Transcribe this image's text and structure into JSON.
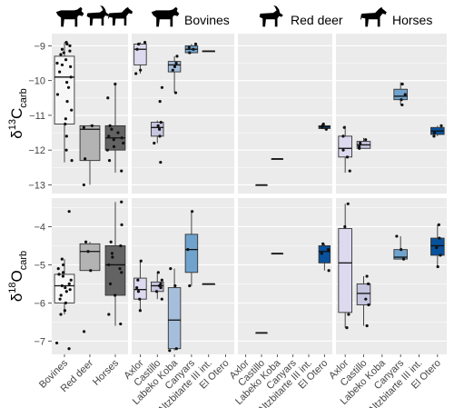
{
  "chart_data": {
    "type": "boxplot",
    "colors": {
      "panel_bg": "#ebebeb",
      "grid": "#ffffff",
      "axis_text": "#444444",
      "point": "#111111",
      "median": "#111111",
      "box_stroke": "#333333",
      "Bovines": "#f7f7f7",
      "Red deer": "#b3b3b3",
      "Horses": "#636363",
      "Axlor": "#ddd9ef",
      "Castillo": "#c6c6e0",
      "Labeko Koba": "#a4bedb",
      "Canyars": "#6fa3cd",
      "Altzbitarte III int.": "#3b78ae",
      "El Otero": "#08519c"
    },
    "column_headers": [
      {
        "label": "",
        "icons": [
          "cow-icon",
          "ibex-icon",
          "horse-icon"
        ]
      },
      {
        "label": "Bovines",
        "icon": "cow-icon"
      },
      {
        "label": "Red deer",
        "icon": "ibex-icon"
      },
      {
        "label": "Horses",
        "icon": "horse-icon"
      }
    ],
    "rows": [
      {
        "id": "C",
        "ylabel": "δ13Ccarb",
        "ylabel_main": "δ",
        "ylabel_sup": "13",
        "ylabel_base": "C",
        "ylabel_sub": "carb",
        "ylim": [
          -13.25,
          -8.65
        ],
        "yticks": [
          -9,
          -10,
          -11,
          -12,
          -13
        ]
      },
      {
        "id": "O",
        "ylabel": "δ18Ocarb",
        "ylabel_main": "δ",
        "ylabel_sup": "18",
        "ylabel_base": "O",
        "ylabel_sub": "carb",
        "ylim": [
          -7.35,
          -3.25
        ],
        "yticks": [
          -4,
          -5,
          -6,
          -7
        ]
      }
    ],
    "overview": {
      "categories": [
        "Bovines",
        "Red deer",
        "Horses"
      ],
      "C": [
        {
          "cat": "Bovines",
          "q1": -11.25,
          "median": -9.9,
          "q3": -9.3,
          "lo": -12.35,
          "hi": -8.9,
          "points": [
            -8.9,
            -8.95,
            -9.0,
            -9.1,
            -9.15,
            -9.2,
            -9.25,
            -9.4,
            -9.5,
            -9.55,
            -9.6,
            -9.75,
            -9.9,
            -10.05,
            -10.2,
            -10.4,
            -10.6,
            -10.85,
            -11.1,
            -11.25,
            -11.6,
            -12.0,
            -12.3
          ]
        },
        {
          "cat": "Red deer",
          "q1": -12.3,
          "median": -11.4,
          "q3": -11.3,
          "lo": -13.0,
          "hi": -11.28,
          "points": [
            -11.3,
            -11.35,
            -12.25,
            -13.0
          ]
        },
        {
          "cat": "Horses",
          "q1": -12.0,
          "median": -11.65,
          "q3": -11.3,
          "lo": -12.65,
          "hi": -10.1,
          "points": [
            -10.1,
            -10.5,
            -11.3,
            -11.4,
            -11.5,
            -11.6,
            -11.65,
            -11.7,
            -11.8,
            -11.9,
            -12.0,
            -12.3,
            -12.6
          ]
        }
      ],
      "O": [
        {
          "cat": "Bovines",
          "q1": -6.0,
          "median": -5.55,
          "q3": -5.25,
          "lo": -6.3,
          "hi": -4.85,
          "points": [
            -3.6,
            -4.85,
            -5.0,
            -5.1,
            -5.2,
            -5.25,
            -5.3,
            -5.4,
            -5.5,
            -5.55,
            -5.6,
            -5.65,
            -5.7,
            -5.8,
            -5.9,
            -6.0,
            -6.2,
            -6.3,
            -7.05,
            -7.2
          ]
        },
        {
          "cat": "Red deer",
          "q1": -5.15,
          "median": -4.65,
          "q3": -4.45,
          "lo": -5.15,
          "hi": -4.4,
          "points": [
            -4.4,
            -4.65,
            -5.15,
            -6.75
          ]
        },
        {
          "cat": "Horses",
          "q1": -5.8,
          "median": -5.0,
          "q3": -4.5,
          "lo": -6.6,
          "hi": -3.35,
          "points": [
            -3.35,
            -3.95,
            -4.4,
            -4.5,
            -4.7,
            -4.8,
            -5.0,
            -5.1,
            -5.2,
            -5.5,
            -5.8,
            -6.3,
            -6.55
          ]
        }
      ]
    },
    "site_categories": [
      "Axlor",
      "Castillo",
      "Labeko Koba",
      "Canyars",
      "Altzbitarte III int.",
      "El Otero"
    ],
    "sites": {
      "Bovines": {
        "C": [
          {
            "site": "Axlor",
            "q1": -9.55,
            "median": -9.1,
            "q3": -8.95,
            "lo": -9.8,
            "hi": -8.9,
            "points": [
              -8.9,
              -8.95,
              -9.1,
              -9.7,
              -9.8
            ]
          },
          {
            "site": "Castillo",
            "q1": -11.6,
            "median": -11.35,
            "q3": -11.2,
            "lo": -11.8,
            "hi": -11.15,
            "points": [
              -10.2,
              -10.6,
              -11.2,
              -11.3,
              -11.4,
              -11.6,
              -11.8,
              -12.35
            ]
          },
          {
            "site": "Labeko Koba",
            "q1": -9.75,
            "median": -9.55,
            "q3": -9.45,
            "lo": -10.35,
            "hi": -9.3,
            "points": [
              -9.3,
              -9.5,
              -9.6,
              -9.7,
              -10.35
            ]
          },
          {
            "site": "Canyars",
            "q1": -9.2,
            "median": -9.1,
            "q3": -9.0,
            "lo": -9.22,
            "hi": -8.95,
            "points": [
              -8.95,
              -9.05,
              -9.1,
              -9.2
            ]
          },
          {
            "site": "Altzbitarte III int.",
            "q1": -9.15,
            "median": -9.15,
            "q3": -9.15,
            "lo": -9.15,
            "hi": -9.15,
            "points": []
          },
          {
            "site": "El Otero",
            "q1": null,
            "median": null,
            "q3": null,
            "lo": null,
            "hi": null,
            "points": []
          }
        ],
        "O": [
          {
            "site": "Axlor",
            "q1": -5.9,
            "median": -5.65,
            "q3": -5.35,
            "lo": -6.2,
            "hi": -4.9,
            "points": [
              -4.9,
              -5.4,
              -5.6,
              -5.7,
              -5.9,
              -6.2
            ]
          },
          {
            "site": "Castillo",
            "q1": -5.7,
            "median": -5.55,
            "q3": -5.45,
            "lo": -5.9,
            "hi": -5.2,
            "points": [
              -5.2,
              -5.4,
              -5.5,
              -5.55,
              -5.6,
              -5.7,
              -5.9
            ]
          },
          {
            "site": "Labeko Koba",
            "q1": -7.2,
            "median": -6.45,
            "q3": -5.6,
            "lo": -7.25,
            "hi": -5.1,
            "points": [
              -5.1,
              -5.55,
              -7.2,
              -7.25
            ]
          },
          {
            "site": "Canyars",
            "q1": -5.2,
            "median": -4.6,
            "q3": -4.2,
            "lo": -5.55,
            "hi": -3.6,
            "points": [
              -3.6,
              -4.6,
              -5.55
            ]
          },
          {
            "site": "Altzbitarte III int.",
            "q1": -5.5,
            "median": -5.5,
            "q3": -5.5,
            "lo": -5.5,
            "hi": -5.5,
            "points": []
          },
          {
            "site": "El Otero",
            "q1": null,
            "median": null,
            "q3": null,
            "lo": null,
            "hi": null,
            "points": []
          }
        ]
      },
      "Red deer": {
        "C": [
          {
            "site": "Axlor",
            "q1": null,
            "median": null,
            "q3": null,
            "lo": null,
            "hi": null,
            "points": []
          },
          {
            "site": "Castillo",
            "q1": -13.0,
            "median": -13.0,
            "q3": -13.0,
            "lo": -13.0,
            "hi": -13.0,
            "points": []
          },
          {
            "site": "Labeko Koba",
            "q1": -12.25,
            "median": -12.25,
            "q3": -12.25,
            "lo": -12.25,
            "hi": -12.25,
            "points": []
          },
          {
            "site": "Canyars",
            "q1": null,
            "median": null,
            "q3": null,
            "lo": null,
            "hi": null,
            "points": []
          },
          {
            "site": "Altzbitarte III int.",
            "q1": null,
            "median": null,
            "q3": null,
            "lo": null,
            "hi": null,
            "points": []
          },
          {
            "site": "El Otero",
            "q1": -11.38,
            "median": -11.33,
            "q3": -11.3,
            "lo": -11.4,
            "hi": -11.25,
            "points": [
              -11.25,
              -11.3,
              -11.35,
              -11.4
            ]
          }
        ],
        "O": [
          {
            "site": "Axlor",
            "q1": null,
            "median": null,
            "q3": null,
            "lo": null,
            "hi": null,
            "points": []
          },
          {
            "site": "Castillo",
            "q1": -6.78,
            "median": -6.78,
            "q3": -6.78,
            "lo": -6.78,
            "hi": -6.78,
            "points": []
          },
          {
            "site": "Labeko Koba",
            "q1": -4.7,
            "median": -4.7,
            "q3": -4.7,
            "lo": -4.7,
            "hi": -4.7,
            "points": []
          },
          {
            "site": "Canyars",
            "q1": null,
            "median": null,
            "q3": null,
            "lo": null,
            "hi": null,
            "points": []
          },
          {
            "site": "Altzbitarte III int.",
            "q1": null,
            "median": null,
            "q3": null,
            "lo": null,
            "hi": null,
            "points": []
          },
          {
            "site": "El Otero",
            "q1": -4.95,
            "median": -4.65,
            "q3": -4.5,
            "lo": -5.15,
            "hi": -4.45,
            "points": [
              -4.45,
              -4.6,
              -4.7,
              -5.15
            ]
          }
        ]
      },
      "Horses": {
        "C": [
          {
            "site": "Axlor",
            "q1": -12.2,
            "median": -11.95,
            "q3": -11.6,
            "lo": -12.65,
            "hi": -11.3,
            "points": [
              -11.35,
              -11.6,
              -12.0,
              -12.2,
              -12.6
            ]
          },
          {
            "site": "Castillo",
            "q1": -11.95,
            "median": -11.85,
            "q3": -11.75,
            "lo": -11.95,
            "hi": -11.65,
            "points": [
              -11.7,
              -11.8,
              -11.9,
              -11.95
            ]
          },
          {
            "site": "Labeko Koba",
            "q1": null,
            "median": null,
            "q3": null,
            "lo": null,
            "hi": null,
            "points": []
          },
          {
            "site": "Canyars",
            "q1": -10.55,
            "median": -10.45,
            "q3": -10.25,
            "lo": -10.7,
            "hi": -10.05,
            "points": [
              -10.1,
              -10.4,
              -10.55,
              -10.7
            ]
          },
          {
            "site": "Altzbitarte III int.",
            "q1": null,
            "median": null,
            "q3": null,
            "lo": null,
            "hi": null,
            "points": []
          },
          {
            "site": "El Otero",
            "q1": -11.55,
            "median": -11.45,
            "q3": -11.35,
            "lo": -11.6,
            "hi": -11.3,
            "points": [
              -11.3,
              -11.5,
              -11.6
            ]
          }
        ],
        "O": [
          {
            "site": "Axlor",
            "q1": -6.25,
            "median": -4.95,
            "q3": -4.05,
            "lo": -6.65,
            "hi": -3.4,
            "points": [
              -3.4,
              -4.0,
              -6.3,
              -6.65
            ]
          },
          {
            "site": "Castillo",
            "q1": -6.05,
            "median": -5.75,
            "q3": -5.5,
            "lo": -6.6,
            "hi": -5.3,
            "points": [
              -5.3,
              -5.5,
              -5.9,
              -6.05,
              -6.6
            ]
          },
          {
            "site": "Labeko Koba",
            "q1": null,
            "median": null,
            "q3": null,
            "lo": null,
            "hi": null,
            "points": []
          },
          {
            "site": "Canyars",
            "q1": -4.85,
            "median": -4.8,
            "q3": -4.6,
            "lo": -4.85,
            "hi": -4.25,
            "points": [
              -4.25,
              -4.6,
              -4.85
            ]
          },
          {
            "site": "Altzbitarte III int.",
            "q1": null,
            "median": null,
            "q3": null,
            "lo": null,
            "hi": null,
            "points": []
          },
          {
            "site": "El Otero",
            "q1": -4.75,
            "median": -4.5,
            "q3": -4.3,
            "lo": -5.05,
            "hi": -3.95,
            "points": [
              -3.95,
              -4.3,
              -4.55,
              -4.75,
              -5.05
            ]
          }
        ]
      }
    }
  }
}
